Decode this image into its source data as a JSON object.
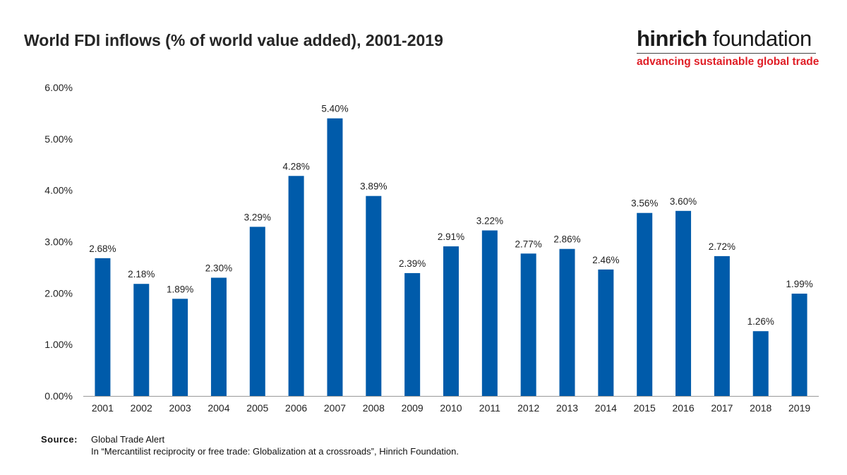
{
  "chart_data": {
    "type": "bar",
    "title": "World FDI inflows (% of world value added), 2001-2019",
    "categories": [
      "2001",
      "2002",
      "2003",
      "2004",
      "2005",
      "2006",
      "2007",
      "2008",
      "2009",
      "2010",
      "2011",
      "2012",
      "2013",
      "2014",
      "2015",
      "2016",
      "2017",
      "2018",
      "2019"
    ],
    "values": [
      2.68,
      2.18,
      1.89,
      2.3,
      3.29,
      4.28,
      5.4,
      3.89,
      2.39,
      2.91,
      3.22,
      2.77,
      2.86,
      2.46,
      3.56,
      3.6,
      2.72,
      1.26,
      1.99
    ],
    "data_labels": [
      "2.68%",
      "2.18%",
      "1.89%",
      "2.30%",
      "3.29%",
      "4.28%",
      "5.40%",
      "3.89%",
      "2.39%",
      "2.91%",
      "3.22%",
      "2.77%",
      "2.86%",
      "2.46%",
      "3.56%",
      "3.60%",
      "2.72%",
      "1.26%",
      "1.99%"
    ],
    "yticks": [
      0,
      1,
      2,
      3,
      4,
      5,
      6
    ],
    "ytick_labels": [
      "0.00%",
      "1.00%",
      "2.00%",
      "3.00%",
      "4.00%",
      "5.00%",
      "6.00%"
    ],
    "ylim": [
      0,
      6
    ],
    "xlabel": "",
    "ylabel": "",
    "grid": false,
    "bar_color": "#005baa"
  },
  "logo": {
    "name_bold": "hinrich",
    "name_rest": " foundation",
    "tagline": "advancing sustainable global trade",
    "tagline_color": "#e01e26"
  },
  "source": {
    "label": "Source:",
    "line1": "Global Trade Alert",
    "line2": "In “Mercantilist reciprocity or free trade: Globalization at a crossroads”, Hinrich Foundation."
  }
}
